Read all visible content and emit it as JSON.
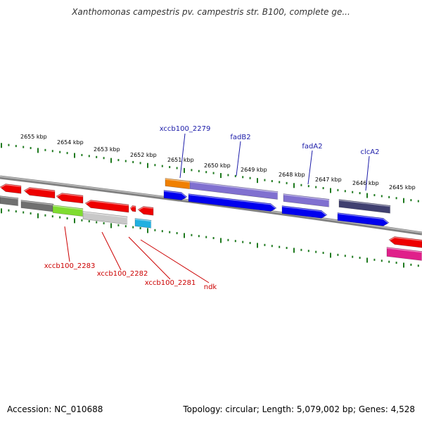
{
  "title": "Xanthomonas campestris pv. campestris str. B100, complete ge...",
  "footer": {
    "accession": "Accession: NC_010688",
    "summary": "Topology: circular; Length: 5,079,002 bp; Genes: 4,528"
  },
  "ruler": {
    "labels": [
      "2655 kbp",
      "2654 kbp",
      "2653 kbp",
      "2652 kbp",
      "2651 kbp",
      "2650 kbp",
      "2649 kbp",
      "2648 kbp",
      "2647 kbp",
      "2646 kbp",
      "2645 kbp"
    ]
  },
  "gene_labels_top": [
    {
      "name": "xccb100_2279",
      "color": "#1a1aa8"
    },
    {
      "name": "fadB2",
      "color": "#1a1aa8"
    },
    {
      "name": "fadA2",
      "color": "#1a1aa8"
    },
    {
      "name": "clcA2",
      "color": "#1a1aa8"
    }
  ],
  "gene_labels_bottom": [
    {
      "name": "xccb100_2283",
      "color": "#cc0000"
    },
    {
      "name": "xccb100_2282",
      "color": "#cc0000"
    },
    {
      "name": "xccb100_2281",
      "color": "#cc0000"
    },
    {
      "name": "ndk",
      "color": "#cc0000"
    }
  ],
  "colors": {
    "tick": "#1f7a1f",
    "backbone": "#808080",
    "red": "#ee0000",
    "blue": "#0000ee",
    "purple": "#8070d0",
    "dark_purple": "#404070",
    "orange": "#f08000",
    "gray": "#707070",
    "light_gray": "#c8c8c8",
    "green": "#7fdc30",
    "cyan": "#20b0e0",
    "magenta": "#e0208a"
  }
}
